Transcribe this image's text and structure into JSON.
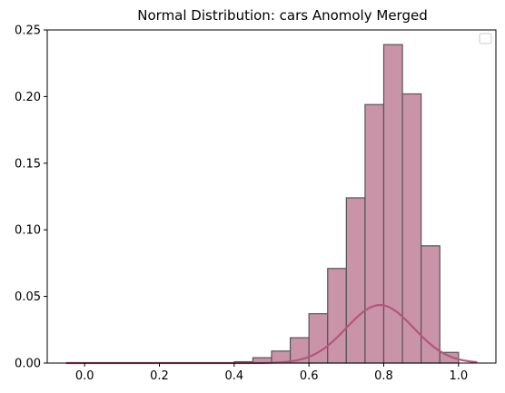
{
  "chart_data": {
    "type": "bar",
    "title": "Normal Distribution: cars Anomoly Merged",
    "xlabel": "",
    "ylabel": "",
    "xlim": [
      -0.1,
      1.1
    ],
    "ylim": [
      0,
      0.25
    ],
    "grid": false,
    "legend": {
      "placement": "top-right",
      "entries": []
    },
    "x_ticks": [
      0.0,
      0.2,
      0.4,
      0.6,
      0.8,
      1.0
    ],
    "x_tick_labels": [
      "0.0",
      "0.2",
      "0.4",
      "0.6",
      "0.8",
      "1.0"
    ],
    "y_ticks": [
      0.0,
      0.05,
      0.1,
      0.15,
      0.2,
      0.25
    ],
    "y_tick_labels": [
      "0.00",
      "0.05",
      "0.10",
      "0.15",
      "0.20",
      "0.25"
    ],
    "histogram": {
      "fill_color": "#c994a8",
      "edge_color": "#555555",
      "bins": [
        {
          "x0": -0.05,
          "x1": 0.0,
          "value": 0.0
        },
        {
          "x0": 0.0,
          "x1": 0.05,
          "value": 0.0
        },
        {
          "x0": 0.05,
          "x1": 0.1,
          "value": 0.0
        },
        {
          "x0": 0.1,
          "x1": 0.15,
          "value": 0.0
        },
        {
          "x0": 0.15,
          "x1": 0.2,
          "value": 0.0
        },
        {
          "x0": 0.2,
          "x1": 0.25,
          "value": 0.0
        },
        {
          "x0": 0.25,
          "x1": 0.3,
          "value": 0.0
        },
        {
          "x0": 0.3,
          "x1": 0.35,
          "value": 0.0
        },
        {
          "x0": 0.35,
          "x1": 0.4,
          "value": 0.0
        },
        {
          "x0": 0.4,
          "x1": 0.45,
          "value": 0.001
        },
        {
          "x0": 0.45,
          "x1": 0.5,
          "value": 0.004
        },
        {
          "x0": 0.5,
          "x1": 0.55,
          "value": 0.009
        },
        {
          "x0": 0.55,
          "x1": 0.6,
          "value": 0.019
        },
        {
          "x0": 0.6,
          "x1": 0.65,
          "value": 0.037
        },
        {
          "x0": 0.65,
          "x1": 0.7,
          "value": 0.071
        },
        {
          "x0": 0.7,
          "x1": 0.75,
          "value": 0.124
        },
        {
          "x0": 0.75,
          "x1": 0.8,
          "value": 0.194
        },
        {
          "x0": 0.8,
          "x1": 0.85,
          "value": 0.239
        },
        {
          "x0": 0.85,
          "x1": 0.9,
          "value": 0.202
        },
        {
          "x0": 0.9,
          "x1": 0.95,
          "value": 0.088
        },
        {
          "x0": 0.95,
          "x1": 1.0,
          "value": 0.008
        },
        {
          "x0": 1.0,
          "x1": 1.05,
          "value": 0.0
        }
      ]
    },
    "curve": {
      "kind": "normal-pdf-scaled",
      "color": "#b5557a",
      "mean": 0.79,
      "sd": 0.09,
      "peak": 0.0435,
      "x_range": [
        -0.05,
        1.05
      ]
    }
  }
}
